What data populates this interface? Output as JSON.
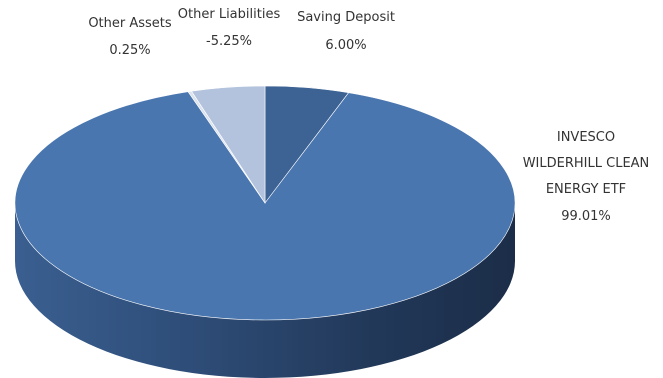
{
  "chart_data": {
    "type": "pie",
    "style": "3d",
    "title": "",
    "slices": [
      {
        "label": "Saving Deposit",
        "value_text": "6.00%",
        "value": 6.0,
        "color": "#3c6394"
      },
      {
        "label": "INVESCO WILDERHILL CLEAN ENERGY ETF",
        "label_lines": [
          "INVESCO",
          "WILDERHILL CLEAN",
          "ENERGY ETF"
        ],
        "value_text": "99.01%",
        "value": 99.01,
        "color": "#4a76af"
      },
      {
        "label": "Other Assets",
        "value_text": "0.25%",
        "value": 0.25,
        "color": "#dce3ef"
      },
      {
        "label": "Other Liabilities",
        "value_text": "-5.25%",
        "value": -5.25,
        "color": "#b3c3dd"
      }
    ],
    "legend": "none",
    "label_position": "outside"
  }
}
